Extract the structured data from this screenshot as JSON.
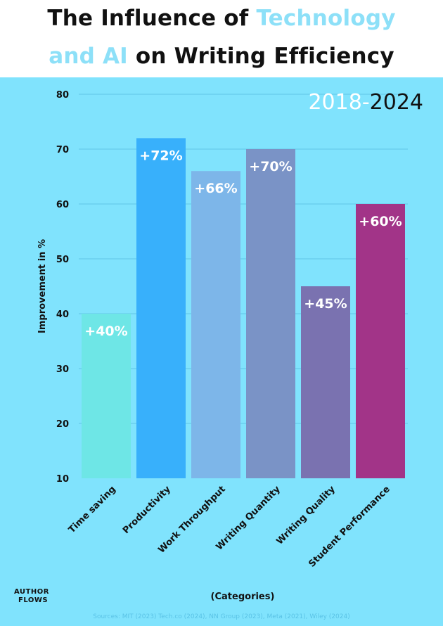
{
  "header": {
    "title_part1": "The Influence of ",
    "title_part2": "Technology",
    "title_part3": "and AI",
    "title_part4": " on Writing Efficiency"
  },
  "years": {
    "start": "2018",
    "separator": "-",
    "end": "2024"
  },
  "logo": {
    "line1": "AUTHOR",
    "line2": "FLOWS"
  },
  "sources": "Sources: MIT (2023) Tech.co (2024), NN Group (2023), Meta (2021), Wiley (2024)",
  "colors": {
    "background": "#80e3fd",
    "title_accent": "#8de0f8",
    "gridline": "#5fc6e8"
  },
  "chart_data": {
    "type": "bar",
    "title": "The Influence of Technology and AI on Writing Efficiency",
    "xlabel": "(Categories)",
    "ylabel": "Improvement in %",
    "ylim": [
      10,
      80
    ],
    "yticks": [
      10,
      20,
      30,
      40,
      50,
      60,
      70,
      80
    ],
    "grid": true,
    "categories": [
      "Time saving",
      "Productivity",
      "Work Throughput",
      "Writing Quantity",
      "Writing Quality",
      "Student Performance"
    ],
    "values": [
      40,
      72,
      66,
      70,
      45,
      60
    ],
    "data_labels": [
      "+40%",
      "+72%",
      "+66%",
      "+70%",
      "+45%",
      "+60%"
    ],
    "bar_colors": [
      "#6ee6e6",
      "#38b0fb",
      "#7db6e9",
      "#7a93c6",
      "#7a72b0",
      "#a23488"
    ]
  }
}
